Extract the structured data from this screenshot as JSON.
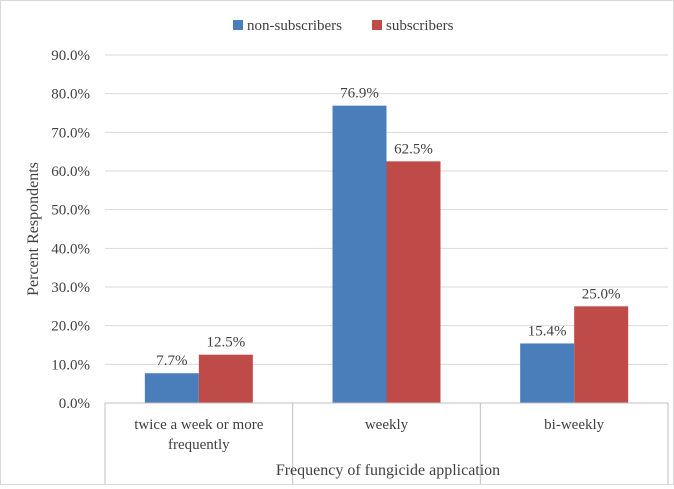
{
  "chart_data": {
    "type": "bar",
    "categories": [
      [
        "twice a week or more",
        "frequently"
      ],
      [
        "weekly"
      ],
      [
        "bi-weekly"
      ]
    ],
    "series": [
      {
        "name": "non-subscribers",
        "values": [
          7.7,
          76.9,
          15.4
        ],
        "color": "#4a7ebb"
      },
      {
        "name": "subscribers",
        "values": [
          12.5,
          62.5,
          25.0
        ],
        "color": "#be4b48"
      }
    ],
    "data_labels": [
      [
        "7.7%",
        "76.9%",
        "15.4%"
      ],
      [
        "12.5%",
        "62.5%",
        "25.0%"
      ]
    ],
    "xlabel": "Frequency of fungicide application",
    "ylabel": "Percent Respondents",
    "ylim": [
      0,
      90
    ],
    "yticks": [
      "0.0%",
      "10.0%",
      "20.0%",
      "30.0%",
      "40.0%",
      "50.0%",
      "60.0%",
      "70.0%",
      "80.0%",
      "90.0%"
    ],
    "grid": true,
    "legend": "top-center",
    "grid_color": "#d9d9d9",
    "axis_color": "#bfbfbf"
  }
}
